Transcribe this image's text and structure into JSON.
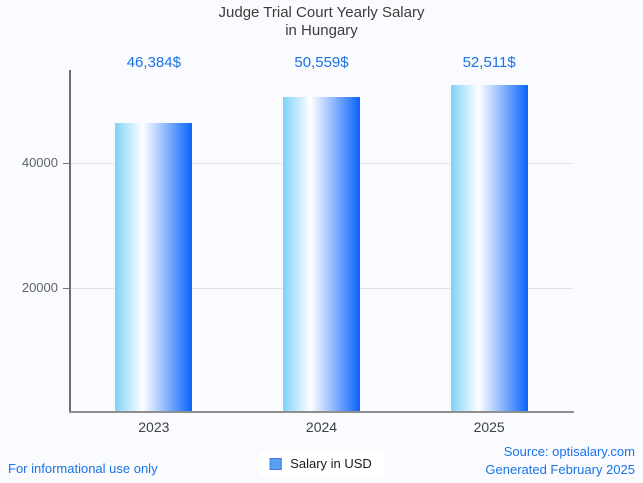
{
  "title": {
    "line1": "Judge Trial Court Yearly Salary",
    "line2": "in Hungary"
  },
  "chart_data": {
    "type": "bar",
    "categories": [
      "2023",
      "2024",
      "2025"
    ],
    "values": [
      46384,
      50559,
      52511
    ],
    "value_labels": [
      "46,384$",
      "50,559$",
      "52,511$"
    ],
    "title": "Judge Trial Court Yearly Salary in Hungary",
    "xlabel": "",
    "ylabel": "",
    "ylim": [
      0,
      54880
    ],
    "y_ticks": [
      {
        "value": 20000,
        "label": "20000"
      },
      {
        "value": 40000,
        "label": "40000"
      }
    ],
    "grid": "horizontal",
    "legend_position": "bottom",
    "series": [
      {
        "name": "Salary in USD",
        "values": [
          46384,
          50559,
          52511
        ]
      }
    ],
    "colors": {
      "bar_gradient_left": "#7ed3f9",
      "bar_gradient_mid": "#ffffff",
      "bar_gradient_right": "#0a64fc",
      "accent": "#1a73e8",
      "gridline": "#e1e3e8",
      "axis": "#6f6f6f"
    }
  },
  "legend": {
    "label": "Salary in USD"
  },
  "footer": {
    "disclaimer": "For informational use only",
    "source": "Source: optisalary.com",
    "generated": "Generated February 2025"
  }
}
